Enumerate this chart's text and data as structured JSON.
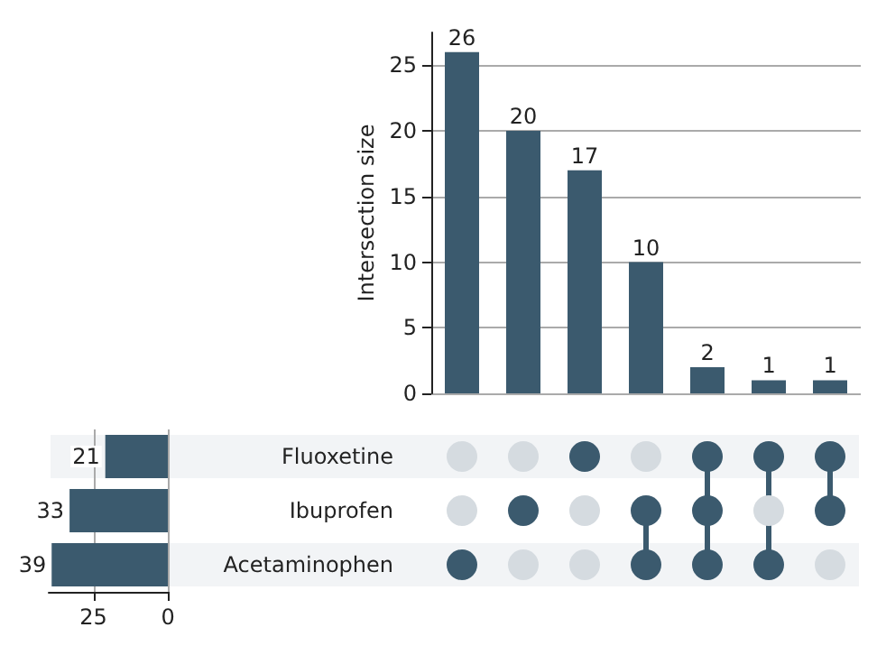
{
  "chart_data": [
    {
      "type": "bar",
      "ylabel": "Intersection size",
      "categories": [
        null,
        null,
        null,
        null,
        null,
        null,
        null
      ],
      "values": [
        26,
        20,
        17,
        10,
        2,
        1,
        1
      ],
      "color": "#3b5a6e",
      "data_labels": true,
      "ylim": [
        0,
        27.5
      ],
      "yticks": [
        0,
        5,
        10,
        15,
        20,
        25
      ],
      "grid": "y",
      "tick_labels": "y"
    },
    {
      "type": "bar",
      "orientation": "horizontal",
      "categories": [
        "Fluoxetine",
        "Ibuprofen",
        "Acetaminophen"
      ],
      "values": [
        21,
        33,
        39
      ],
      "color": "#3b5a6e",
      "data_labels": true,
      "xlim": [
        40,
        0
      ],
      "xticks": [
        25,
        0
      ],
      "grid": "x"
    }
  ]
}
